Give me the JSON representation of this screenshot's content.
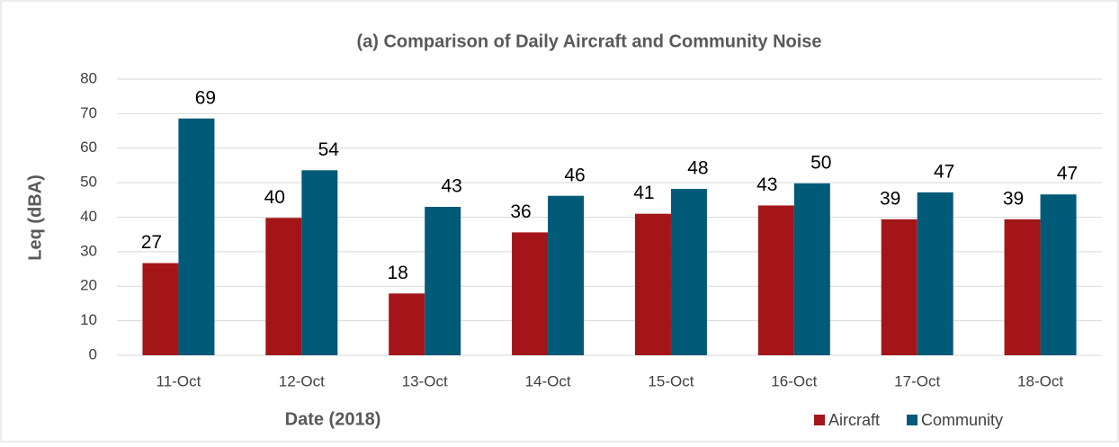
{
  "chart_data": {
    "type": "bar",
    "title": "(a) Comparison of Daily Aircraft and Community Noise",
    "x_label": "Date (2018)",
    "y_label": "Leq (dBA)",
    "categories": [
      "11-Oct",
      "12-Oct",
      "13-Oct",
      "14-Oct",
      "15-Oct",
      "16-Oct",
      "17-Oct",
      "18-Oct"
    ],
    "series": [
      {
        "name": "Aircraft",
        "color": "#a31519",
        "values": [
          26.7,
          39.8,
          17.9,
          35.6,
          41.0,
          43.4,
          39.4,
          39.4
        ],
        "value_labels": [
          "27",
          "40",
          "18",
          "36",
          "41",
          "43",
          "39",
          "39"
        ]
      },
      {
        "name": "Community",
        "color": "#005a78",
        "values": [
          68.6,
          53.6,
          43.0,
          46.2,
          48.2,
          49.8,
          47.2,
          46.6
        ],
        "value_labels": [
          "69",
          "54",
          "43",
          "46",
          "48",
          "50",
          "47",
          "47"
        ]
      }
    ],
    "ylim": [
      0,
      80
    ],
    "yticks": [
      0,
      10,
      20,
      30,
      40,
      50,
      60,
      70,
      80
    ],
    "grid": true,
    "legend": "bottom-right"
  }
}
